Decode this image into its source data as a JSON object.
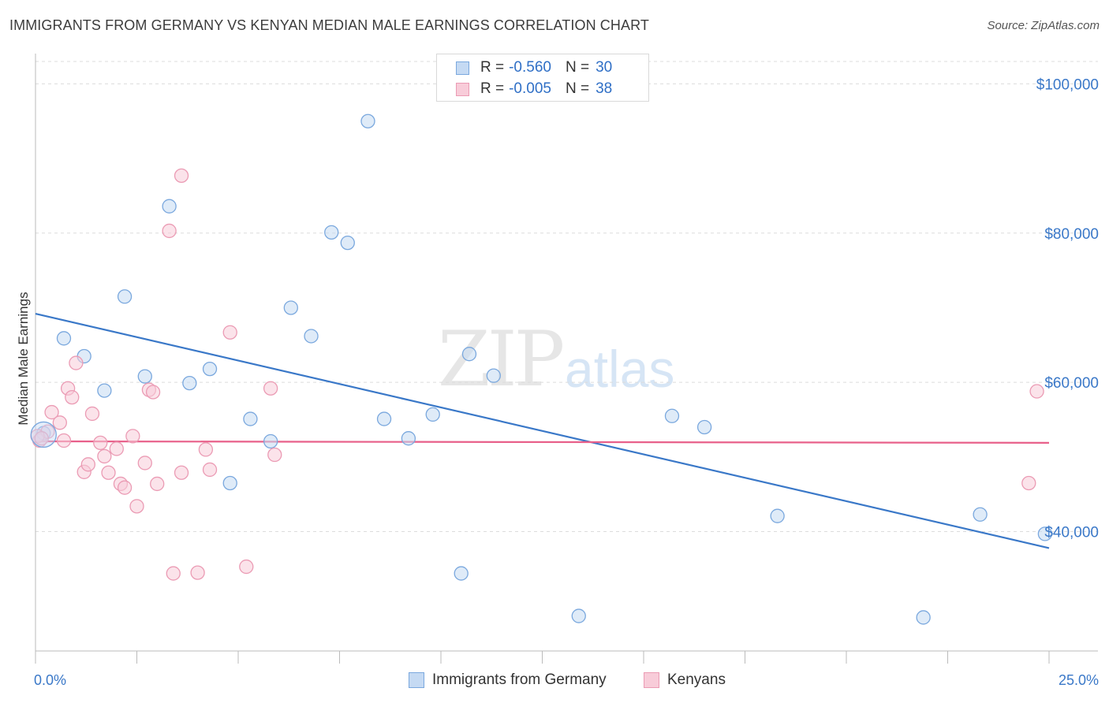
{
  "header": {
    "title": "IMMIGRANTS FROM GERMANY VS KENYAN MEDIAN MALE EARNINGS CORRELATION CHART",
    "source": "Source: ZipAtlas.com"
  },
  "watermark": {
    "zip": "ZIP",
    "atlas": "atlas"
  },
  "colors": {
    "blue": "#3a78c8",
    "blue_fill": "#c5daf3",
    "blue_stroke": "#7aa8de",
    "pink": "#e8608a",
    "pink_fill": "#f8ccd9",
    "pink_stroke": "#eb9bb4",
    "grid": "#dcdcdc"
  },
  "legend": {
    "r_label": "R =",
    "n_label": "N =",
    "rows": [
      {
        "r": "-0.560",
        "n": "30"
      },
      {
        "r": "-0.005",
        "n": "38"
      }
    ]
  },
  "chart_data": {
    "type": "scatter",
    "title": "IMMIGRANTS FROM GERMANY VS KENYAN MEDIAN MALE EARNINGS CORRELATION CHART",
    "xlabel": "",
    "ylabel": "Median Male Earnings",
    "xlim": [
      0,
      25
    ],
    "ylim": [
      22000,
      103000
    ],
    "x_tick_labels": [
      "0.0%",
      "25.0%"
    ],
    "y_ticks": [
      40000,
      60000,
      80000,
      100000
    ],
    "y_tick_labels": [
      "$40,000",
      "$60,000",
      "$80,000",
      "$100,000"
    ],
    "grid": true,
    "legend_position": "top-center",
    "series": [
      {
        "name": "Immigrants from Germany",
        "color": "#3a78c8",
        "trend": {
          "x": [
            0,
            25
          ],
          "y": [
            69200,
            37800
          ]
        },
        "points": [
          [
            0.2,
            53200
          ],
          [
            0.7,
            65900
          ],
          [
            1.2,
            63500
          ],
          [
            1.7,
            58900
          ],
          [
            2.2,
            71500
          ],
          [
            2.7,
            60800
          ],
          [
            3.3,
            83600
          ],
          [
            3.8,
            59900
          ],
          [
            4.3,
            61800
          ],
          [
            4.8,
            46500
          ],
          [
            5.3,
            55100
          ],
          [
            5.8,
            52100
          ],
          [
            6.3,
            70000
          ],
          [
            6.8,
            66200
          ],
          [
            7.3,
            80100
          ],
          [
            7.7,
            78700
          ],
          [
            8.2,
            95000
          ],
          [
            8.6,
            55100
          ],
          [
            9.2,
            52500
          ],
          [
            9.8,
            55700
          ],
          [
            10.5,
            34400
          ],
          [
            10.7,
            63800
          ],
          [
            11.3,
            60900
          ],
          [
            13.4,
            28700
          ],
          [
            15.7,
            55500
          ],
          [
            16.5,
            54000
          ],
          [
            18.3,
            42100
          ],
          [
            21.9,
            28500
          ],
          [
            23.3,
            42300
          ],
          [
            24.9,
            39700
          ]
        ]
      },
      {
        "name": "Kenyans",
        "color": "#e8608a",
        "trend": {
          "x": [
            0,
            25
          ],
          "y": [
            52100,
            51900
          ]
        },
        "points": [
          [
            0.1,
            52200
          ],
          [
            0.3,
            53400
          ],
          [
            0.4,
            56000
          ],
          [
            0.6,
            54600
          ],
          [
            0.7,
            52200
          ],
          [
            0.8,
            59200
          ],
          [
            0.9,
            58000
          ],
          [
            1.0,
            62600
          ],
          [
            1.2,
            48000
          ],
          [
            1.3,
            49000
          ],
          [
            1.4,
            55800
          ],
          [
            1.6,
            51900
          ],
          [
            1.7,
            50100
          ],
          [
            1.8,
            47900
          ],
          [
            2.0,
            51100
          ],
          [
            2.1,
            46400
          ],
          [
            2.2,
            45900
          ],
          [
            2.4,
            52800
          ],
          [
            2.5,
            43400
          ],
          [
            2.7,
            49200
          ],
          [
            2.8,
            59000
          ],
          [
            2.9,
            58700
          ],
          [
            3.0,
            46400
          ],
          [
            3.3,
            80300
          ],
          [
            3.4,
            34400
          ],
          [
            3.6,
            47900
          ],
          [
            3.6,
            87700
          ],
          [
            4.0,
            34500
          ],
          [
            4.2,
            51000
          ],
          [
            4.3,
            48300
          ],
          [
            4.8,
            66700
          ],
          [
            5.2,
            35300
          ],
          [
            5.8,
            59200
          ],
          [
            5.9,
            50300
          ],
          [
            0.05,
            52800
          ],
          [
            24.7,
            58800
          ],
          [
            24.5,
            46500
          ],
          [
            0.15,
            52500
          ]
        ]
      }
    ]
  }
}
